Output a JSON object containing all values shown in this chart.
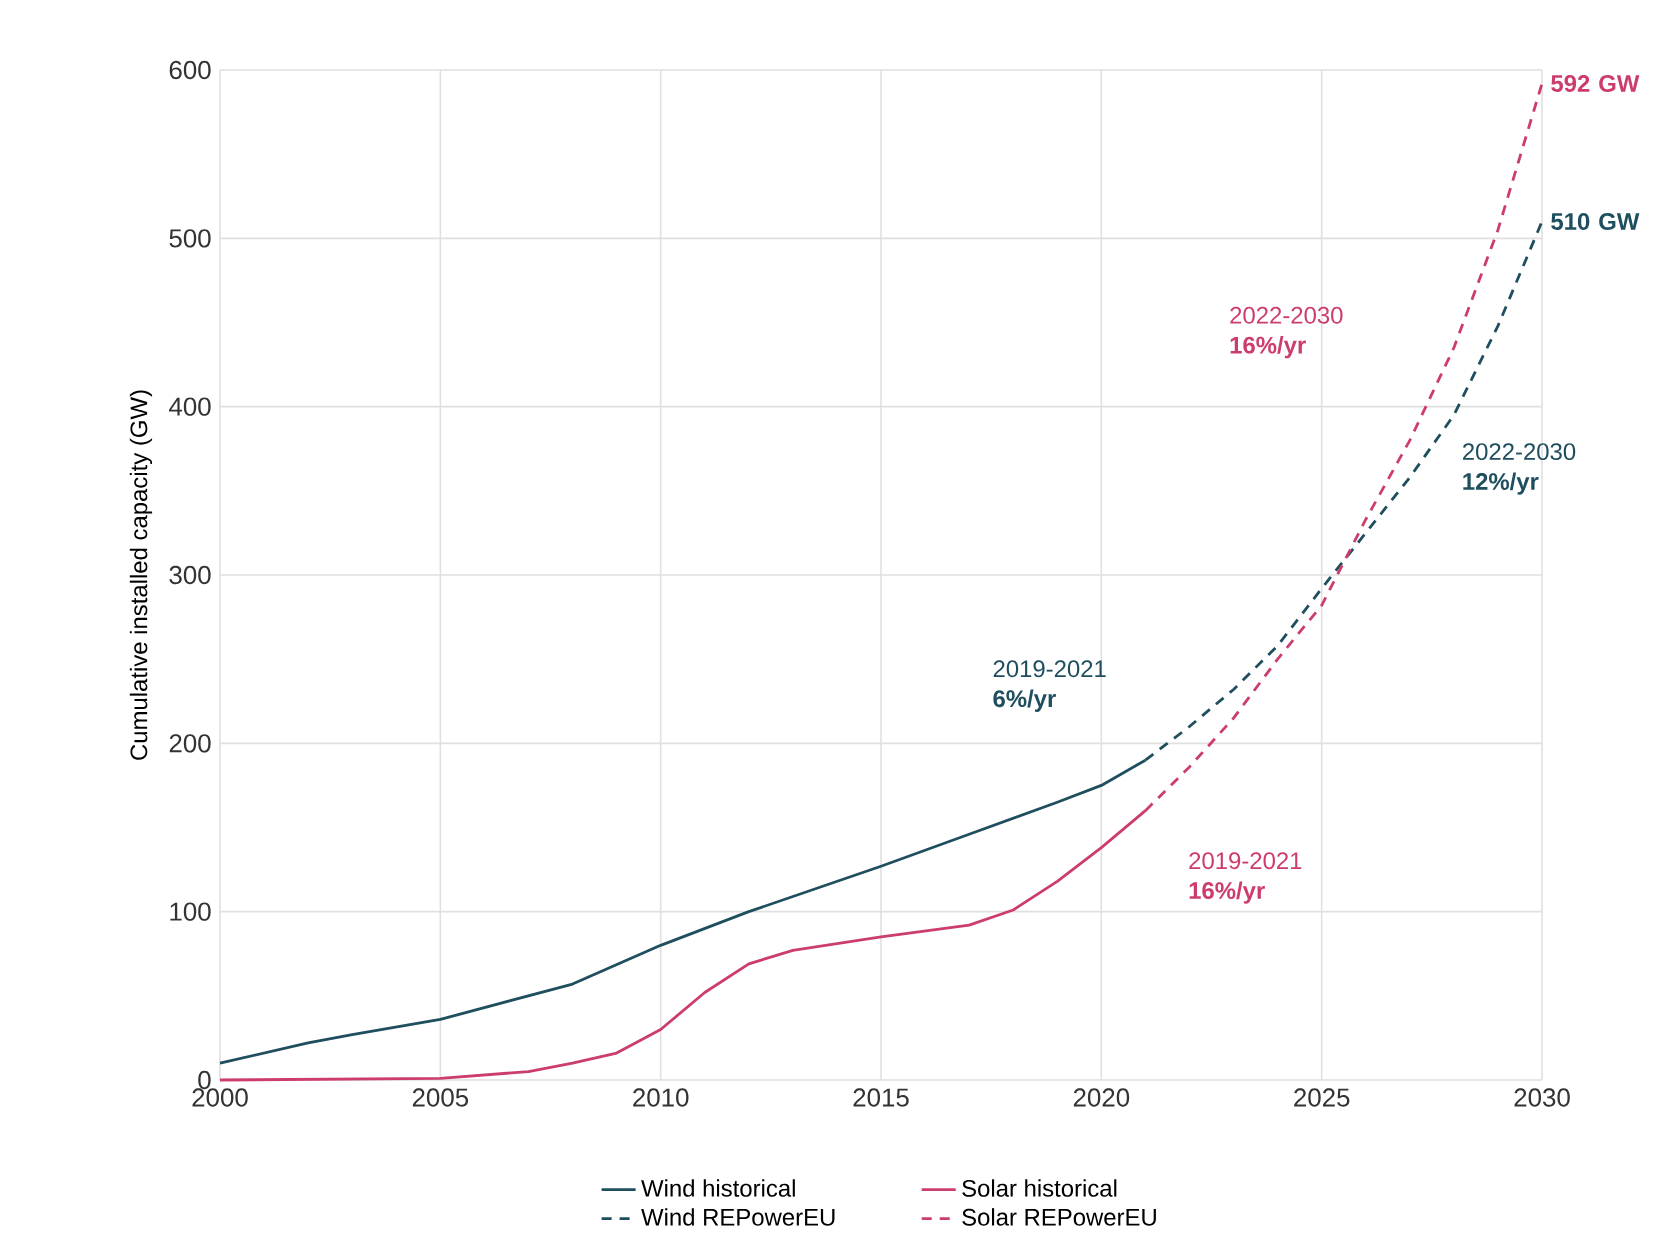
{
  "chart_data": {
    "type": "line",
    "ylabel": "Cumulative installed capacity (GW)",
    "xlim": [
      2000,
      2030
    ],
    "xticks": [
      2000,
      2005,
      2010,
      2015,
      2020,
      2025,
      2030
    ],
    "ylim": [
      0,
      600
    ],
    "yticks": [
      0,
      100,
      200,
      300,
      400,
      500,
      600
    ],
    "grid": true,
    "legend": "bottom",
    "series": [
      {
        "name": "Wind historical",
        "color": "#1f4e5f",
        "line_style": "solid",
        "x": [
          2000,
          2002,
          2003,
          2005,
          2008,
          2010,
          2012,
          2015,
          2017,
          2019,
          2020,
          2021
        ],
        "values": [
          10,
          22,
          27,
          36,
          57,
          80,
          100,
          127,
          146,
          165,
          175,
          190
        ]
      },
      {
        "name": "Solar historical",
        "color": "#cc3d6e",
        "line_style": "solid",
        "x": [
          2000,
          2005,
          2007,
          2008,
          2009,
          2010,
          2011,
          2012,
          2013,
          2015,
          2017,
          2018,
          2019,
          2020,
          2021
        ],
        "values": [
          0,
          1,
          5,
          10,
          16,
          30,
          52,
          69,
          77,
          85,
          92,
          101,
          118,
          138,
          160
        ]
      },
      {
        "name": "Wind REPowerEU",
        "color": "#1f4e5f",
        "line_style": "dashed",
        "x": [
          2021,
          2022,
          2023,
          2024,
          2025,
          2026,
          2027,
          2028,
          2029,
          2030
        ],
        "values": [
          190,
          210,
          232,
          258,
          292,
          325,
          358,
          395,
          448,
          510
        ]
      },
      {
        "name": "Solar REPowerEU",
        "color": "#cc3d6e",
        "line_style": "dashed",
        "x": [
          2021,
          2022,
          2023,
          2024,
          2025,
          2026,
          2027,
          2028,
          2029,
          2030
        ],
        "values": [
          160,
          186,
          215,
          250,
          282,
          333,
          380,
          435,
          505,
          592
        ]
      }
    ],
    "annotations": [
      "2019-2021 **6%/yr**",
      "2019-2021 **16%/yr**",
      "2022-2030 **16%/yr**",
      "2022-2030 **12%/yr**",
      {
        "text": "**592 GW**",
        "x": 2030,
        "y": 592
      },
      {
        "text": "**510 GW**",
        "x": 2030,
        "y": 510
      }
    ]
  }
}
